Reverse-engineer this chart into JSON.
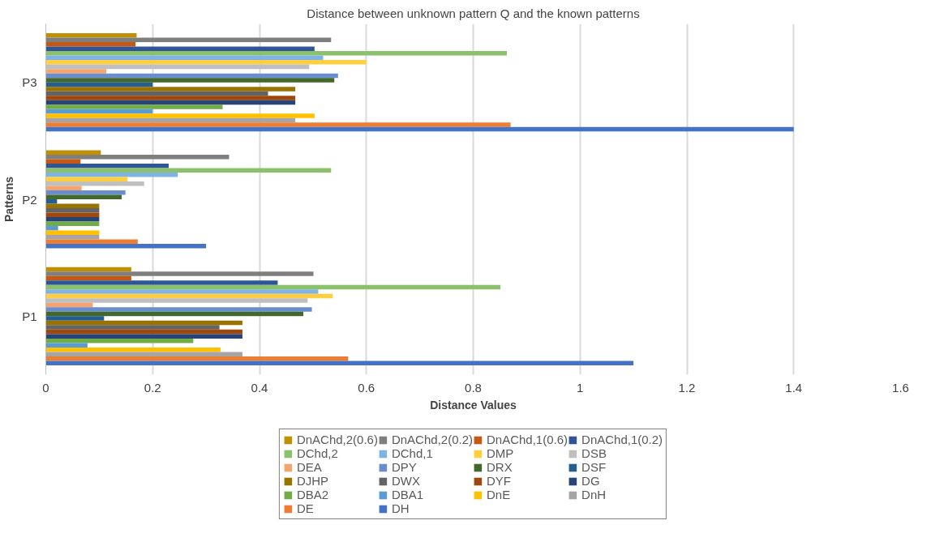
{
  "chart_data": {
    "type": "bar",
    "orientation": "horizontal",
    "title": "Distance between unknown pattern Q and the known patterns",
    "xlabel": "Distance Values",
    "ylabel": "Patterns",
    "categories": [
      "P3",
      "P2",
      "P1"
    ],
    "xlim": [
      0,
      1.6
    ],
    "xticks": [
      0,
      0.2,
      0.4,
      0.6,
      0.8,
      1,
      1.2,
      1.4,
      1.6
    ],
    "grid": "x",
    "legend": "bottom",
    "series": [
      {
        "name": "DnAChd,2(0.6)",
        "color": "#bf9000",
        "values": [
          0.17,
          0.103,
          0.16
        ]
      },
      {
        "name": "DnAChd,2(0.2)",
        "color": "#7f7f7f",
        "values": [
          0.534,
          0.343,
          0.501
        ]
      },
      {
        "name": "DnAChd,1(0.6)",
        "color": "#c65911",
        "values": [
          0.168,
          0.065,
          0.16
        ]
      },
      {
        "name": "DnAChd,1(0.2)",
        "color": "#2f5597",
        "values": [
          0.503,
          0.23,
          0.434
        ]
      },
      {
        "name": "DChd,2",
        "color": "#8bc16a",
        "values": [
          0.863,
          0.534,
          0.851
        ]
      },
      {
        "name": "DChd,1",
        "color": "#7fb3e3",
        "values": [
          0.519,
          0.247,
          0.51
        ]
      },
      {
        "name": "DMP",
        "color": "#ffcf3f",
        "values": [
          0.6,
          0.153,
          0.537
        ]
      },
      {
        "name": "DSB",
        "color": "#bfbfbf",
        "values": [
          0.493,
          0.184,
          0.49
        ]
      },
      {
        "name": "DEA",
        "color": "#f4a46f",
        "values": [
          0.113,
          0.067,
          0.088
        ]
      },
      {
        "name": "DPY",
        "color": "#698ed0",
        "values": [
          0.547,
          0.149,
          0.498
        ]
      },
      {
        "name": "DRX",
        "color": "#43682b",
        "values": [
          0.54,
          0.142,
          0.482
        ]
      },
      {
        "name": "DSF",
        "color": "#255e91",
        "values": [
          0.2,
          0.021,
          0.109
        ]
      },
      {
        "name": "DJHP",
        "color": "#997300",
        "values": [
          0.467,
          0.1,
          0.368
        ]
      },
      {
        "name": "DWX",
        "color": "#636363",
        "values": [
          0.416,
          0.1,
          0.325
        ]
      },
      {
        "name": "DYF",
        "color": "#9e480e",
        "values": [
          0.467,
          0.1,
          0.368
        ]
      },
      {
        "name": "DG",
        "color": "#264478",
        "values": [
          0.467,
          0.1,
          0.368
        ]
      },
      {
        "name": "DBA2",
        "color": "#70ad47",
        "values": [
          0.331,
          0.1,
          0.276
        ]
      },
      {
        "name": "DBA1",
        "color": "#5b9bd5",
        "values": [
          0.2,
          0.023,
          0.078
        ]
      },
      {
        "name": "DnE",
        "color": "#ffc000",
        "values": [
          0.503,
          0.1,
          0.327
        ]
      },
      {
        "name": "DnH",
        "color": "#a5a5a5",
        "values": [
          0.467,
          0.1,
          0.368
        ]
      },
      {
        "name": "DE",
        "color": "#ed7d31",
        "values": [
          0.87,
          0.172,
          0.566
        ]
      },
      {
        "name": "DH",
        "color": "#4472c4",
        "values": [
          1.4,
          0.3,
          1.1
        ]
      }
    ]
  }
}
